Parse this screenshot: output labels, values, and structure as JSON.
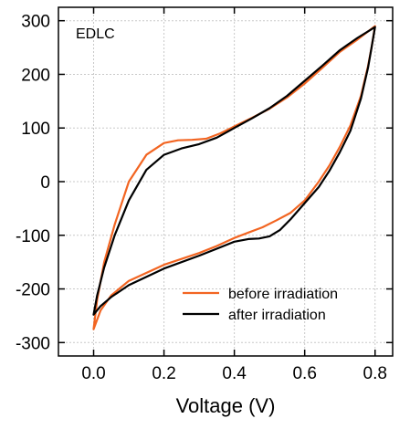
{
  "chart_data": {
    "type": "line",
    "title": "",
    "xlabel": "Voltage (V)",
    "ylabel": "",
    "annotation": "EDLC",
    "xlim": [
      -0.1,
      0.85
    ],
    "ylim": [
      -325,
      325
    ],
    "xticks": [
      0.0,
      0.2,
      0.4,
      0.6,
      0.8
    ],
    "xtick_labels": [
      "0.0",
      "0.2",
      "0.4",
      "0.6",
      "0.8"
    ],
    "yticks": [
      -300,
      -200,
      -100,
      0,
      100,
      200,
      300
    ],
    "ytick_labels": [
      "-300",
      "-200",
      "-100",
      "0",
      "100",
      "200",
      "300"
    ],
    "grid": true,
    "legend_position": "bottom-right",
    "series": [
      {
        "name": "before irradiation",
        "color": "#f26522",
        "x": [
          0.0,
          0.01,
          0.03,
          0.06,
          0.1,
          0.15,
          0.2,
          0.24,
          0.28,
          0.32,
          0.36,
          0.4,
          0.45,
          0.5,
          0.55,
          0.6,
          0.65,
          0.7,
          0.75,
          0.8,
          0.8,
          0.79,
          0.78,
          0.76,
          0.73,
          0.7,
          0.67,
          0.64,
          0.6,
          0.56,
          0.52,
          0.48,
          0.44,
          0.4,
          0.35,
          0.3,
          0.2,
          0.1,
          0.05,
          0.02,
          0.0
        ],
        "y": [
          -275,
          -220,
          -150,
          -80,
          0,
          50,
          72,
          77,
          78,
          80,
          90,
          103,
          119,
          136,
          157,
          183,
          212,
          242,
          265,
          290,
          290,
          250,
          215,
          160,
          105,
          65,
          30,
          0,
          -35,
          -58,
          -72,
          -85,
          -95,
          -105,
          -120,
          -133,
          -155,
          -185,
          -212,
          -240,
          -275
        ]
      },
      {
        "name": "after irradiation",
        "color": "#000000",
        "x": [
          0.0,
          0.01,
          0.03,
          0.06,
          0.1,
          0.15,
          0.2,
          0.25,
          0.3,
          0.35,
          0.4,
          0.45,
          0.5,
          0.55,
          0.6,
          0.65,
          0.7,
          0.75,
          0.8,
          0.8,
          0.79,
          0.78,
          0.76,
          0.73,
          0.7,
          0.67,
          0.64,
          0.6,
          0.56,
          0.53,
          0.5,
          0.47,
          0.44,
          0.4,
          0.35,
          0.3,
          0.2,
          0.1,
          0.05,
          0.02,
          0.0
        ],
        "y": [
          -248,
          -212,
          -160,
          -100,
          -35,
          22,
          50,
          62,
          70,
          82,
          100,
          118,
          137,
          160,
          188,
          216,
          245,
          268,
          288,
          288,
          250,
          212,
          155,
          95,
          55,
          20,
          -10,
          -40,
          -70,
          -90,
          -102,
          -106,
          -107,
          -112,
          -125,
          -138,
          -162,
          -193,
          -215,
          -232,
          -248
        ]
      }
    ]
  }
}
